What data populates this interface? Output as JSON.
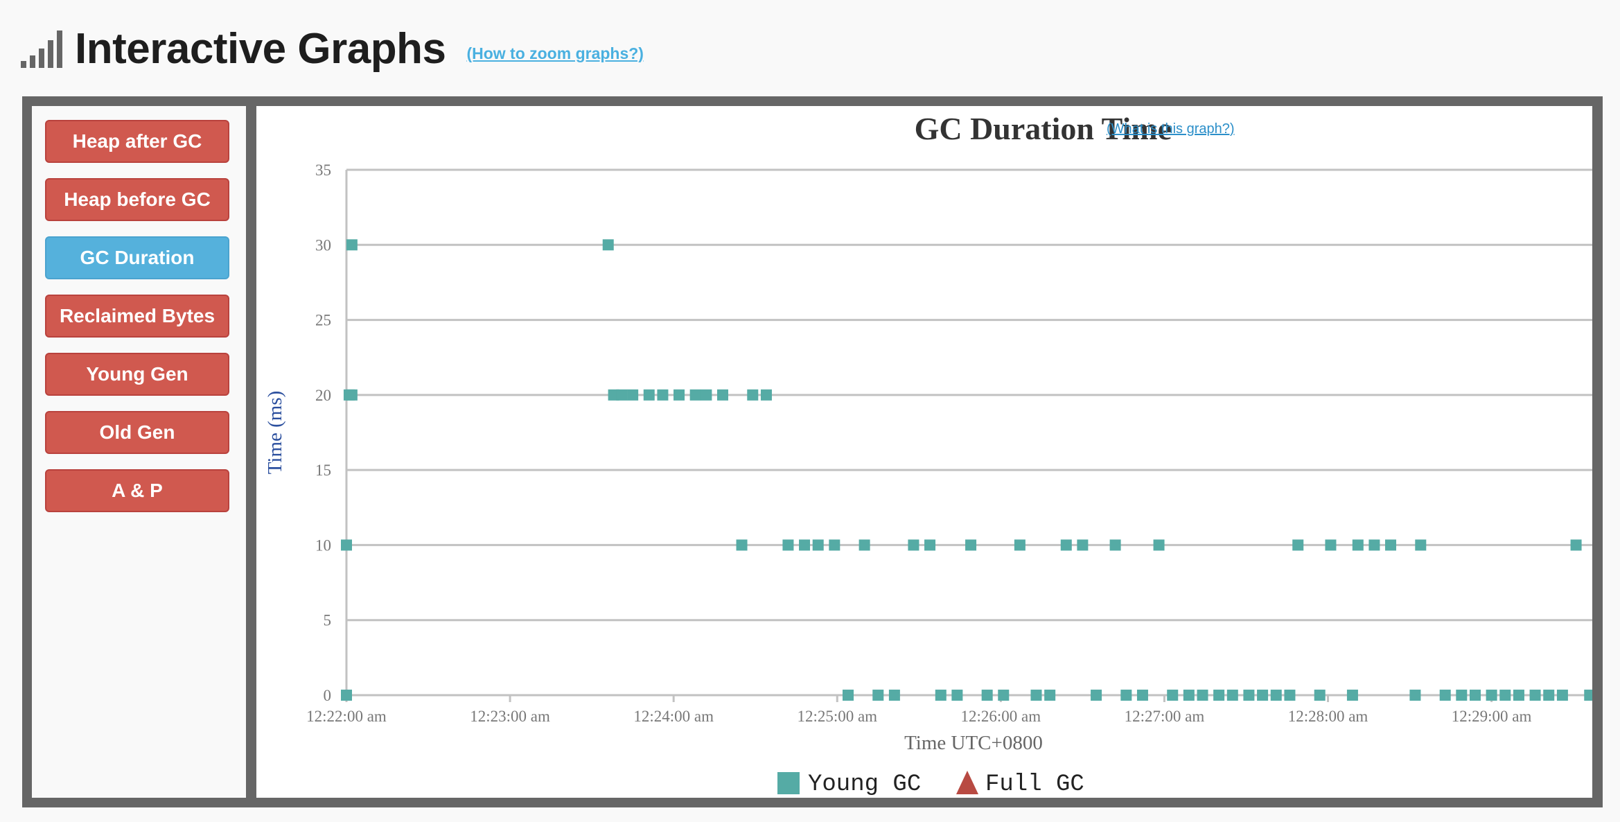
{
  "header": {
    "title": "Interactive Graphs",
    "zoom_link": "(How to zoom graphs?)",
    "icon": "signal-bars-icon"
  },
  "sidebar": {
    "items": [
      {
        "label": "Heap after GC",
        "active": false
      },
      {
        "label": "Heap before GC",
        "active": false
      },
      {
        "label": "GC Duration",
        "active": true
      },
      {
        "label": "Reclaimed Bytes",
        "active": false
      },
      {
        "label": "Young Gen",
        "active": false
      },
      {
        "label": "Old Gen",
        "active": false
      },
      {
        "label": "A & P",
        "active": false
      }
    ]
  },
  "colors": {
    "active_button": "#55b1dc",
    "inactive_button": "#d0594f",
    "young_gc": "#55aba5",
    "full_gc": "#b84a42",
    "ylabel": "#2b4f9e"
  },
  "chart_data": {
    "type": "scatter",
    "title": "GC Duration Time",
    "help_link": "(What is this graph?)",
    "xlabel": "Time UTC+0800",
    "ylabel": "Time (ms)",
    "ylim": [
      0,
      35
    ],
    "yticks": [
      0,
      5,
      10,
      15,
      20,
      25,
      30,
      35
    ],
    "xlim": [
      "12:22:00",
      "12:29:40"
    ],
    "xticks": [
      "12:22:00 am",
      "12:23:00 am",
      "12:24:00 am",
      "12:25:00 am",
      "12:26:00 am",
      "12:27:00 am",
      "12:28:00 am",
      "12:29:00 am"
    ],
    "grid": true,
    "legend": "bottom-center",
    "series": [
      {
        "name": "Young GC",
        "marker": "square",
        "points": [
          {
            "x": "12:22:00",
            "y": 0
          },
          {
            "x": "12:22:00",
            "y": 10
          },
          {
            "x": "12:22:01",
            "y": 20
          },
          {
            "x": "12:22:02",
            "y": 20
          },
          {
            "x": "12:22:02",
            "y": 30
          },
          {
            "x": "12:23:36",
            "y": 30
          },
          {
            "x": "12:23:38",
            "y": 20
          },
          {
            "x": "12:23:41",
            "y": 20
          },
          {
            "x": "12:23:45",
            "y": 20
          },
          {
            "x": "12:23:51",
            "y": 20
          },
          {
            "x": "12:23:56",
            "y": 20
          },
          {
            "x": "12:24:02",
            "y": 20
          },
          {
            "x": "12:24:08",
            "y": 20
          },
          {
            "x": "12:24:12",
            "y": 20
          },
          {
            "x": "12:24:18",
            "y": 20
          },
          {
            "x": "12:24:29",
            "y": 20
          },
          {
            "x": "12:24:34",
            "y": 20
          },
          {
            "x": "12:24:25",
            "y": 10
          },
          {
            "x": "12:24:42",
            "y": 10
          },
          {
            "x": "12:24:48",
            "y": 10
          },
          {
            "x": "12:24:53",
            "y": 10
          },
          {
            "x": "12:24:59",
            "y": 10
          },
          {
            "x": "12:25:10",
            "y": 10
          },
          {
            "x": "12:25:28",
            "y": 10
          },
          {
            "x": "12:25:34",
            "y": 10
          },
          {
            "x": "12:25:49",
            "y": 10
          },
          {
            "x": "12:26:07",
            "y": 10
          },
          {
            "x": "12:26:24",
            "y": 10
          },
          {
            "x": "12:26:30",
            "y": 10
          },
          {
            "x": "12:26:42",
            "y": 10
          },
          {
            "x": "12:26:58",
            "y": 10
          },
          {
            "x": "12:27:49",
            "y": 10
          },
          {
            "x": "12:28:01",
            "y": 10
          },
          {
            "x": "12:28:11",
            "y": 10
          },
          {
            "x": "12:28:17",
            "y": 10
          },
          {
            "x": "12:28:23",
            "y": 10
          },
          {
            "x": "12:28:34",
            "y": 10
          },
          {
            "x": "12:29:31",
            "y": 10
          },
          {
            "x": "12:25:04",
            "y": 0
          },
          {
            "x": "12:25:15",
            "y": 0
          },
          {
            "x": "12:25:21",
            "y": 0
          },
          {
            "x": "12:25:38",
            "y": 0
          },
          {
            "x": "12:25:44",
            "y": 0
          },
          {
            "x": "12:25:55",
            "y": 0
          },
          {
            "x": "12:26:01",
            "y": 0
          },
          {
            "x": "12:26:13",
            "y": 0
          },
          {
            "x": "12:26:18",
            "y": 0
          },
          {
            "x": "12:26:35",
            "y": 0
          },
          {
            "x": "12:26:46",
            "y": 0
          },
          {
            "x": "12:26:52",
            "y": 0
          },
          {
            "x": "12:27:03",
            "y": 0
          },
          {
            "x": "12:27:09",
            "y": 0
          },
          {
            "x": "12:27:14",
            "y": 0
          },
          {
            "x": "12:27:20",
            "y": 0
          },
          {
            "x": "12:27:25",
            "y": 0
          },
          {
            "x": "12:27:31",
            "y": 0
          },
          {
            "x": "12:27:36",
            "y": 0
          },
          {
            "x": "12:27:41",
            "y": 0
          },
          {
            "x": "12:27:46",
            "y": 0
          },
          {
            "x": "12:27:57",
            "y": 0
          },
          {
            "x": "12:28:09",
            "y": 0
          },
          {
            "x": "12:28:32",
            "y": 0
          },
          {
            "x": "12:28:43",
            "y": 0
          },
          {
            "x": "12:28:49",
            "y": 0
          },
          {
            "x": "12:28:54",
            "y": 0
          },
          {
            "x": "12:29:00",
            "y": 0
          },
          {
            "x": "12:29:05",
            "y": 0
          },
          {
            "x": "12:29:10",
            "y": 0
          },
          {
            "x": "12:29:16",
            "y": 0
          },
          {
            "x": "12:29:21",
            "y": 0
          },
          {
            "x": "12:29:26",
            "y": 0
          },
          {
            "x": "12:29:36",
            "y": 0
          }
        ]
      },
      {
        "name": "Full GC",
        "marker": "triangle",
        "points": []
      }
    ]
  }
}
